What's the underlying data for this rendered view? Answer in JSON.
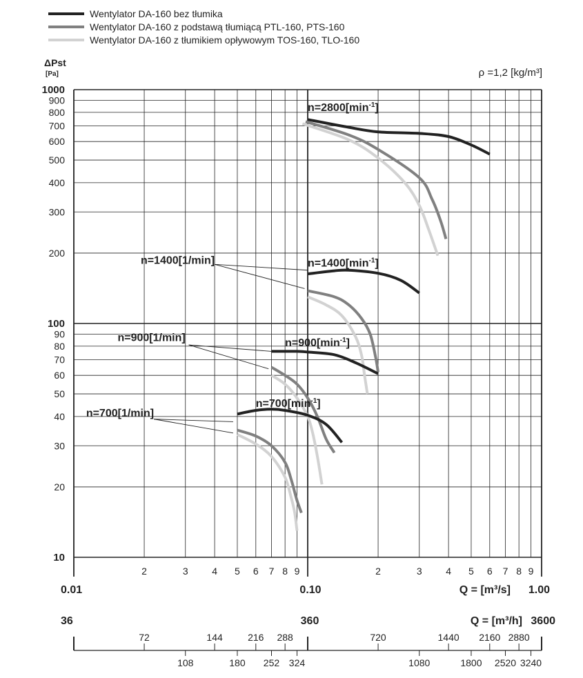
{
  "chart_data": {
    "type": "line",
    "x_scale": "log",
    "y_scale": "log",
    "xlim": [
      0.01,
      1.0
    ],
    "ylim": [
      10,
      1000
    ],
    "grid": true,
    "legend_position": "top-left",
    "density_label": "ρ =1,2 [kg/m³]",
    "ylabel": "ΔPst",
    "ylabel_unit": "[Pa]",
    "xlabel": "Q = [m³/s]",
    "x2label": "Q = [m³/h]",
    "y_ticks": [
      {
        "v": 1000,
        "label": "1000",
        "major": true
      },
      {
        "v": 900,
        "label": "900"
      },
      {
        "v": 800,
        "label": "800"
      },
      {
        "v": 700,
        "label": "700"
      },
      {
        "v": 600,
        "label": "600"
      },
      {
        "v": 500,
        "label": "500"
      },
      {
        "v": 400,
        "label": "400"
      },
      {
        "v": 300,
        "label": "300"
      },
      {
        "v": 200,
        "label": "200"
      },
      {
        "v": 100,
        "label": "100",
        "major": true
      },
      {
        "v": 90,
        "label": "90"
      },
      {
        "v": 80,
        "label": "80"
      },
      {
        "v": 70,
        "label": "70"
      },
      {
        "v": 60,
        "label": "60"
      },
      {
        "v": 50,
        "label": "50"
      },
      {
        "v": 40,
        "label": "40"
      },
      {
        "v": 30,
        "label": "30"
      },
      {
        "v": 20,
        "label": "20"
      },
      {
        "v": 10,
        "label": "10",
        "major": true
      }
    ],
    "x_ticks": [
      {
        "v": 0.02,
        "label": "2"
      },
      {
        "v": 0.03,
        "label": "3"
      },
      {
        "v": 0.04,
        "label": "4"
      },
      {
        "v": 0.05,
        "label": "5"
      },
      {
        "v": 0.06,
        "label": "6"
      },
      {
        "v": 0.07,
        "label": "7"
      },
      {
        "v": 0.08,
        "label": "8"
      },
      {
        "v": 0.09,
        "label": "9"
      },
      {
        "v": 0.2,
        "label": "2"
      },
      {
        "v": 0.3,
        "label": "3"
      },
      {
        "v": 0.4,
        "label": "4"
      },
      {
        "v": 0.5,
        "label": "5"
      },
      {
        "v": 0.6,
        "label": "6"
      },
      {
        "v": 0.7,
        "label": "7"
      },
      {
        "v": 0.8,
        "label": "8"
      },
      {
        "v": 0.9,
        "label": "9"
      }
    ],
    "x_decades": [
      {
        "v": 0.01,
        "label": "0.01"
      },
      {
        "v": 0.1,
        "label": "0.10"
      },
      {
        "v": 1.0,
        "label": "1.00"
      }
    ],
    "x2_decades": [
      {
        "v": 0.01,
        "label": "36"
      },
      {
        "v": 0.1,
        "label": "360"
      },
      {
        "v": 1.0,
        "label": "3600"
      }
    ],
    "x2_ticks_top": [
      {
        "v": 0.02,
        "label": "72"
      },
      {
        "v": 0.04,
        "label": "144"
      },
      {
        "v": 0.06,
        "label": "216"
      },
      {
        "v": 0.08,
        "label": "288"
      },
      {
        "v": 0.2,
        "label": "720"
      },
      {
        "v": 0.4,
        "label": "1440"
      },
      {
        "v": 0.6,
        "label": "2160"
      },
      {
        "v": 0.8,
        "label": "2880"
      }
    ],
    "x2_ticks_bottom": [
      {
        "v": 0.03,
        "label": "108"
      },
      {
        "v": 0.05,
        "label": "180"
      },
      {
        "v": 0.07,
        "label": "252"
      },
      {
        "v": 0.09,
        "label": "324"
      },
      {
        "v": 0.3,
        "label": "1080"
      },
      {
        "v": 0.5,
        "label": "1800"
      },
      {
        "v": 0.7,
        "label": "2520"
      },
      {
        "v": 0.9,
        "label": "3240"
      }
    ],
    "series": [
      {
        "name": "Wentylator DA-160 bez tłumika",
        "color": "#222222"
      },
      {
        "name": "Wentylator DA-160 z podstawą tłumiącą PTL-160, PTS-160",
        "color": "#808080"
      },
      {
        "name": "Wentylator DA-160 z tłumikiem opływowym TOS-160, TLO-160",
        "color": "#d2d2d2"
      }
    ],
    "curves": [
      {
        "series": 0,
        "n": "2800",
        "points": [
          [
            0.1,
            745
          ],
          [
            0.15,
            690
          ],
          [
            0.2,
            660
          ],
          [
            0.3,
            650
          ],
          [
            0.4,
            630
          ],
          [
            0.5,
            580
          ],
          [
            0.6,
            530
          ]
        ]
      },
      {
        "series": 1,
        "n": "2800",
        "points": [
          [
            0.098,
            730
          ],
          [
            0.15,
            640
          ],
          [
            0.2,
            555
          ],
          [
            0.3,
            420
          ],
          [
            0.34,
            340
          ],
          [
            0.37,
            275
          ],
          [
            0.39,
            230
          ]
        ]
      },
      {
        "series": 2,
        "n": "2800",
        "points": [
          [
            0.095,
            715
          ],
          [
            0.15,
            610
          ],
          [
            0.2,
            510
          ],
          [
            0.26,
            400
          ],
          [
            0.3,
            320
          ],
          [
            0.33,
            250
          ],
          [
            0.36,
            195
          ]
        ]
      },
      {
        "series": 0,
        "n": "1400",
        "points": [
          [
            0.1,
            163
          ],
          [
            0.13,
            168
          ],
          [
            0.15,
            169
          ],
          [
            0.2,
            164
          ],
          [
            0.25,
            153
          ],
          [
            0.3,
            135
          ]
        ]
      },
      {
        "series": 1,
        "n": "1400",
        "points": [
          [
            0.1,
            138
          ],
          [
            0.13,
            130
          ],
          [
            0.15,
            120
          ],
          [
            0.17,
            105
          ],
          [
            0.185,
            90
          ],
          [
            0.195,
            72
          ],
          [
            0.2,
            62
          ]
        ]
      },
      {
        "series": 2,
        "n": "1400",
        "points": [
          [
            0.1,
            130
          ],
          [
            0.12,
            120
          ],
          [
            0.14,
            108
          ],
          [
            0.16,
            88
          ],
          [
            0.17,
            73
          ],
          [
            0.175,
            60
          ],
          [
            0.18,
            50
          ]
        ]
      },
      {
        "series": 0,
        "n": "900",
        "points": [
          [
            0.07,
            76
          ],
          [
            0.09,
            76
          ],
          [
            0.1,
            75.5
          ],
          [
            0.13,
            73.5
          ],
          [
            0.16,
            68
          ],
          [
            0.2,
            61
          ]
        ]
      },
      {
        "series": 1,
        "n": "900",
        "points": [
          [
            0.07,
            65
          ],
          [
            0.08,
            60
          ],
          [
            0.09,
            55
          ],
          [
            0.1,
            48
          ],
          [
            0.11,
            40
          ],
          [
            0.12,
            32
          ],
          [
            0.13,
            28
          ]
        ]
      },
      {
        "series": 2,
        "n": "900",
        "points": [
          [
            0.07,
            60
          ],
          [
            0.08,
            55
          ],
          [
            0.09,
            48
          ],
          [
            0.1,
            40
          ],
          [
            0.105,
            34
          ],
          [
            0.11,
            27
          ],
          [
            0.115,
            20.5
          ]
        ]
      },
      {
        "series": 0,
        "n": "700",
        "points": [
          [
            0.05,
            41
          ],
          [
            0.06,
            42.5
          ],
          [
            0.07,
            43
          ],
          [
            0.08,
            42.5
          ],
          [
            0.1,
            40.5
          ],
          [
            0.12,
            37
          ],
          [
            0.14,
            31
          ]
        ]
      },
      {
        "series": 1,
        "n": "700",
        "points": [
          [
            0.05,
            35
          ],
          [
            0.06,
            33
          ],
          [
            0.07,
            30
          ],
          [
            0.08,
            25.5
          ],
          [
            0.085,
            21.5
          ],
          [
            0.09,
            17.5
          ],
          [
            0.094,
            15.5
          ]
        ]
      },
      {
        "series": 2,
        "n": "700",
        "points": [
          [
            0.05,
            33.5
          ],
          [
            0.06,
            30.5
          ],
          [
            0.07,
            27
          ],
          [
            0.08,
            22
          ],
          [
            0.085,
            18
          ],
          [
            0.088,
            15.5
          ],
          [
            0.09,
            13
          ]
        ]
      }
    ],
    "annotations": [
      {
        "text": "n=2800[min",
        "sup": "-1",
        "close": "]",
        "x": 0.1,
        "y": 810
      },
      {
        "text": "n=1400[min",
        "sup": "-1",
        "close": "]",
        "x": 0.1,
        "y": 175
      },
      {
        "text": "n=900[min",
        "sup": "-1",
        "close": "]",
        "x": 0.08,
        "y": 80
      },
      {
        "text": "n=700[min",
        "sup": "-1",
        "close": "]",
        "x": 0.06,
        "y": 44
      },
      {
        "text": "n=1400[1/min]",
        "sup": "",
        "close": "",
        "x": 0.04,
        "y": 180,
        "anchor": "end"
      },
      {
        "text": "n=900[1/min]",
        "sup": "",
        "close": "",
        "x": 0.03,
        "y": 84,
        "anchor": "end"
      },
      {
        "text": "n=700[1/min]",
        "sup": "",
        "close": "",
        "x": 0.022,
        "y": 40,
        "anchor": "end"
      }
    ],
    "leaders": [
      {
        "from": [
          0.04,
          179
        ],
        "to": [
          0.1,
          169
        ]
      },
      {
        "from": [
          0.04,
          179
        ],
        "to": [
          0.097,
          141
        ]
      },
      {
        "from": [
          0.031,
          81
        ],
        "to": [
          0.07,
          76
        ]
      },
      {
        "from": [
          0.031,
          81
        ],
        "to": [
          0.068,
          64
        ]
      },
      {
        "from": [
          0.022,
          39
        ],
        "to": [
          0.048,
          38
        ]
      },
      {
        "from": [
          0.022,
          39
        ],
        "to": [
          0.048,
          34
        ]
      }
    ]
  }
}
